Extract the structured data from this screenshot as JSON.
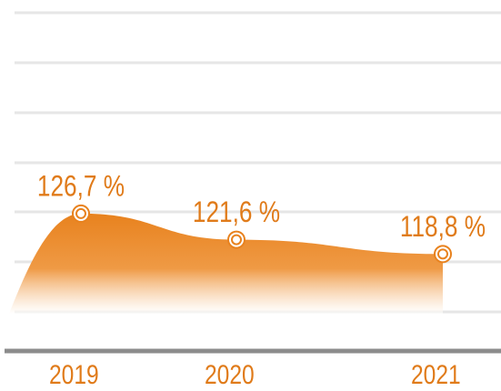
{
  "chart_data": {
    "type": "area",
    "categories": [
      "2019",
      "2020",
      "2021"
    ],
    "values": [
      126.7,
      121.6,
      118.8
    ],
    "value_labels": [
      "126,7 %",
      "121,6 %",
      "118,8 %"
    ],
    "color": "#e8821e",
    "ylim": [
      100,
      166
    ]
  }
}
